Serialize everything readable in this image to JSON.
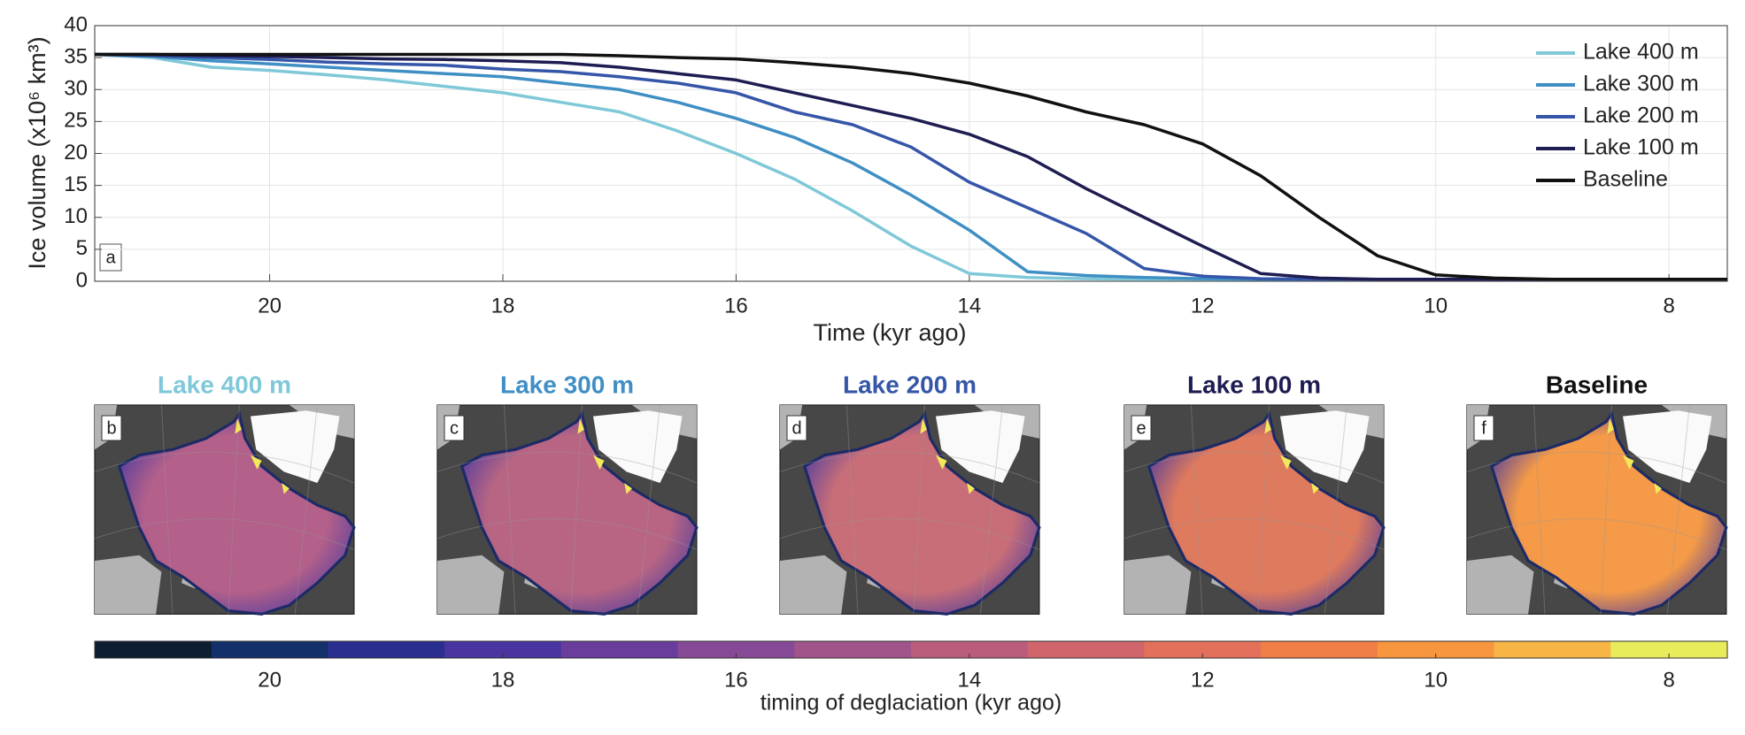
{
  "chart_data": {
    "type": "line",
    "x": [
      21.5,
      21,
      20.5,
      20,
      19.5,
      19,
      18.5,
      18,
      17.5,
      17,
      16.5,
      16,
      15.5,
      15,
      14.5,
      14,
      13.5,
      13,
      12.5,
      12,
      11.5,
      11,
      10.5,
      10,
      9.5,
      9,
      8.5,
      8,
      7.5
    ],
    "series": [
      {
        "name": "Lake 400 m",
        "color": "#7fc8d8",
        "values": [
          35.5,
          35,
          33.5,
          33,
          32.3,
          31.5,
          30.5,
          29.5,
          28,
          26.5,
          23.5,
          20,
          16,
          11,
          5.5,
          1.2,
          0.6,
          0.4,
          0.3,
          0.3,
          0.3,
          0.3,
          0.3,
          0.3,
          0.3,
          0.3,
          0.3,
          0.3,
          0.3
        ]
      },
      {
        "name": "Lake 300 m",
        "color": "#3f8fc4",
        "values": [
          35.5,
          35.2,
          34.5,
          34,
          33.5,
          33,
          32.5,
          32,
          31,
          30,
          28,
          25.5,
          22.5,
          18.5,
          13.5,
          8,
          1.5,
          0.9,
          0.6,
          0.4,
          0.3,
          0.3,
          0.3,
          0.3,
          0.3,
          0.3,
          0.3,
          0.3,
          0.3
        ]
      },
      {
        "name": "Lake 200 m",
        "color": "#3556a8",
        "values": [
          35.5,
          35.3,
          35,
          34.7,
          34.3,
          34,
          33.8,
          33.2,
          32.8,
          32,
          31,
          29.5,
          26.5,
          24.5,
          21,
          15.5,
          11.5,
          7.5,
          2,
          0.8,
          0.4,
          0.3,
          0.3,
          0.3,
          0.3,
          0.3,
          0.3,
          0.3,
          0.3
        ]
      },
      {
        "name": "Lake 100 m",
        "color": "#1e1d52",
        "values": [
          35.5,
          35.5,
          35.3,
          35.2,
          35,
          34.8,
          34.7,
          34.5,
          34.2,
          33.5,
          32.5,
          31.5,
          29.5,
          27.5,
          25.5,
          23,
          19.5,
          14.5,
          10,
          5.5,
          1.2,
          0.5,
          0.3,
          0.3,
          0.3,
          0.3,
          0.3,
          0.3,
          0.3
        ]
      },
      {
        "name": "Baseline",
        "color": "#111111",
        "values": [
          35.5,
          35.5,
          35.5,
          35.5,
          35.5,
          35.5,
          35.5,
          35.5,
          35.5,
          35.3,
          35,
          34.8,
          34.2,
          33.5,
          32.5,
          31,
          29,
          26.5,
          24.5,
          21.5,
          16.5,
          10,
          4,
          1,
          0.5,
          0.3,
          0.3,
          0.3,
          0.3
        ]
      }
    ],
    "xlabel": "Time (kyr ago)",
    "ylabel": "Ice volume (x10⁶ km³)",
    "panel_label": "a",
    "xlim": [
      21.5,
      7.5
    ],
    "xticks": [
      20,
      18,
      16,
      14,
      12,
      10,
      8
    ],
    "ylim": [
      0,
      40
    ],
    "yticks": [
      0,
      5,
      10,
      15,
      20,
      25,
      30,
      35,
      40
    ],
    "grid": true,
    "legend": "upper right"
  },
  "maps": {
    "panels": [
      {
        "letter": "b",
        "title": "Lake 400 m",
        "title_color": "#7fc8d8"
      },
      {
        "letter": "c",
        "title": "Lake 300 m",
        "title_color": "#3f8fc4"
      },
      {
        "letter": "d",
        "title": "Lake 200 m",
        "title_color": "#3556a8"
      },
      {
        "letter": "e",
        "title": "Lake 100 m",
        "title_color": "#1e1d52"
      },
      {
        "letter": "f",
        "title": "Baseline",
        "title_color": "#111111"
      }
    ],
    "colorbar": {
      "label": "timing of deglaciation (kyr ago)",
      "lim": [
        21.5,
        7.5
      ],
      "ticks": [
        20,
        18,
        16,
        14,
        12,
        10,
        8
      ],
      "colors": [
        "#0c1e30",
        "#14306a",
        "#2a2e8f",
        "#4a35a0",
        "#6a3d9c",
        "#864995",
        "#a1548a",
        "#ba5d7c",
        "#d0666c",
        "#e3705a",
        "#f07e47",
        "#f7963e",
        "#f6b545",
        "#e9ec5a"
      ]
    }
  }
}
